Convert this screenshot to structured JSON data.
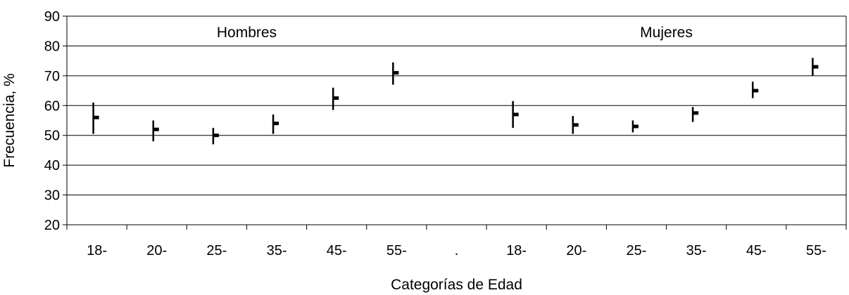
{
  "chart_data": {
    "type": "scatter",
    "style": "high-low-mean",
    "title": "",
    "xlabel": "Categorías de Edad",
    "ylabel": "Frecuencia, %",
    "ylim": [
      20,
      90
    ],
    "yticks": [
      20,
      30,
      40,
      50,
      60,
      70,
      80,
      90
    ],
    "grid": true,
    "categories": [
      "18-",
      "20-",
      "25-",
      "35-",
      "45-",
      "55-",
      ".",
      "18-",
      "20-",
      "25-",
      "35-",
      "45-",
      "55-"
    ],
    "groups": [
      {
        "label": "Hombres"
      },
      {
        "label": "Mujeres"
      }
    ],
    "series": [
      {
        "values": [
          56,
          52,
          50,
          54,
          62.5,
          71,
          null,
          57,
          53.5,
          53,
          57.5,
          65,
          73
        ],
        "high": [
          61,
          55,
          52.5,
          57,
          66,
          74.5,
          null,
          61.5,
          56.5,
          55,
          59.5,
          68,
          76
        ],
        "low": [
          50.5,
          48,
          47,
          50.5,
          58.5,
          67,
          null,
          52.5,
          50.5,
          51,
          54.5,
          62.5,
          70
        ]
      }
    ]
  }
}
